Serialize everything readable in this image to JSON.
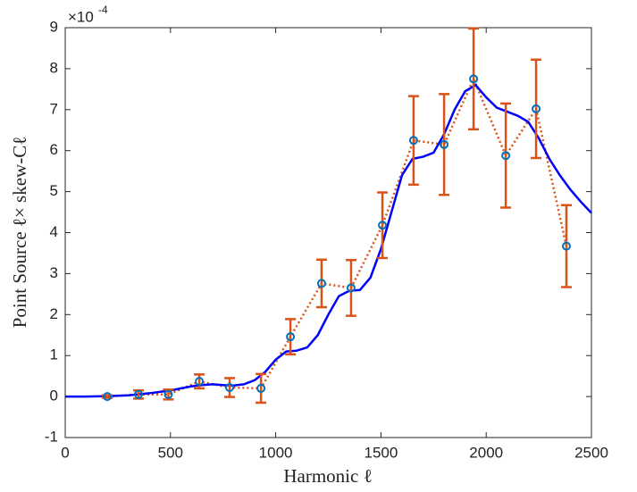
{
  "chart_data": {
    "type": "line",
    "x_label": "Harmonic ℓ",
    "y_label": "Point Source ℓ× skew-Cℓ",
    "y_multiplier": {
      "base": "×10",
      "power": "-4"
    },
    "xlim": [
      0,
      2500
    ],
    "xticks": [
      0,
      500,
      1000,
      1500,
      2000,
      2500
    ],
    "ylim": [
      -1,
      9
    ],
    "yticks": [
      -1,
      0,
      1,
      2,
      3,
      4,
      5,
      6,
      7,
      8,
      9
    ],
    "curve": {
      "color": "#0000ff",
      "x": [
        0,
        100,
        200,
        300,
        400,
        500,
        600,
        650,
        700,
        750,
        800,
        850,
        900,
        950,
        1000,
        1050,
        1100,
        1150,
        1200,
        1250,
        1300,
        1350,
        1400,
        1450,
        1500,
        1550,
        1600,
        1650,
        1700,
        1750,
        1800,
        1850,
        1900,
        1950,
        2000,
        2050,
        2100,
        2150,
        2200,
        2250,
        2300,
        2350,
        2400,
        2450,
        2500
      ],
      "values": [
        0,
        0,
        0.01,
        0.03,
        0.08,
        0.15,
        0.25,
        0.28,
        0.3,
        0.28,
        0.27,
        0.3,
        0.4,
        0.6,
        0.9,
        1.1,
        1.12,
        1.2,
        1.5,
        2.0,
        2.45,
        2.58,
        2.6,
        2.9,
        3.6,
        4.5,
        5.4,
        5.8,
        5.85,
        5.95,
        6.4,
        7.0,
        7.45,
        7.6,
        7.3,
        7.05,
        6.95,
        6.85,
        6.7,
        6.3,
        5.8,
        5.4,
        5.05,
        4.75,
        4.48
      ]
    },
    "points": {
      "color": "#d95319",
      "marker_color": "#0072bd",
      "x": [
        200,
        348,
        490,
        637,
        781,
        930,
        1070,
        1218,
        1358,
        1507,
        1655,
        1800,
        1940,
        2093,
        2237,
        2381
      ],
      "values": [
        0,
        0.05,
        0.05,
        0.37,
        0.22,
        0.2,
        1.46,
        2.76,
        2.65,
        4.18,
        6.25,
        6.15,
        7.75,
        5.88,
        7.02,
        3.67
      ],
      "errors": [
        0.03,
        0.1,
        0.12,
        0.17,
        0.23,
        0.35,
        0.43,
        0.58,
        0.68,
        0.8,
        1.08,
        1.23,
        1.23,
        1.27,
        1.2,
        1.0
      ]
    }
  }
}
